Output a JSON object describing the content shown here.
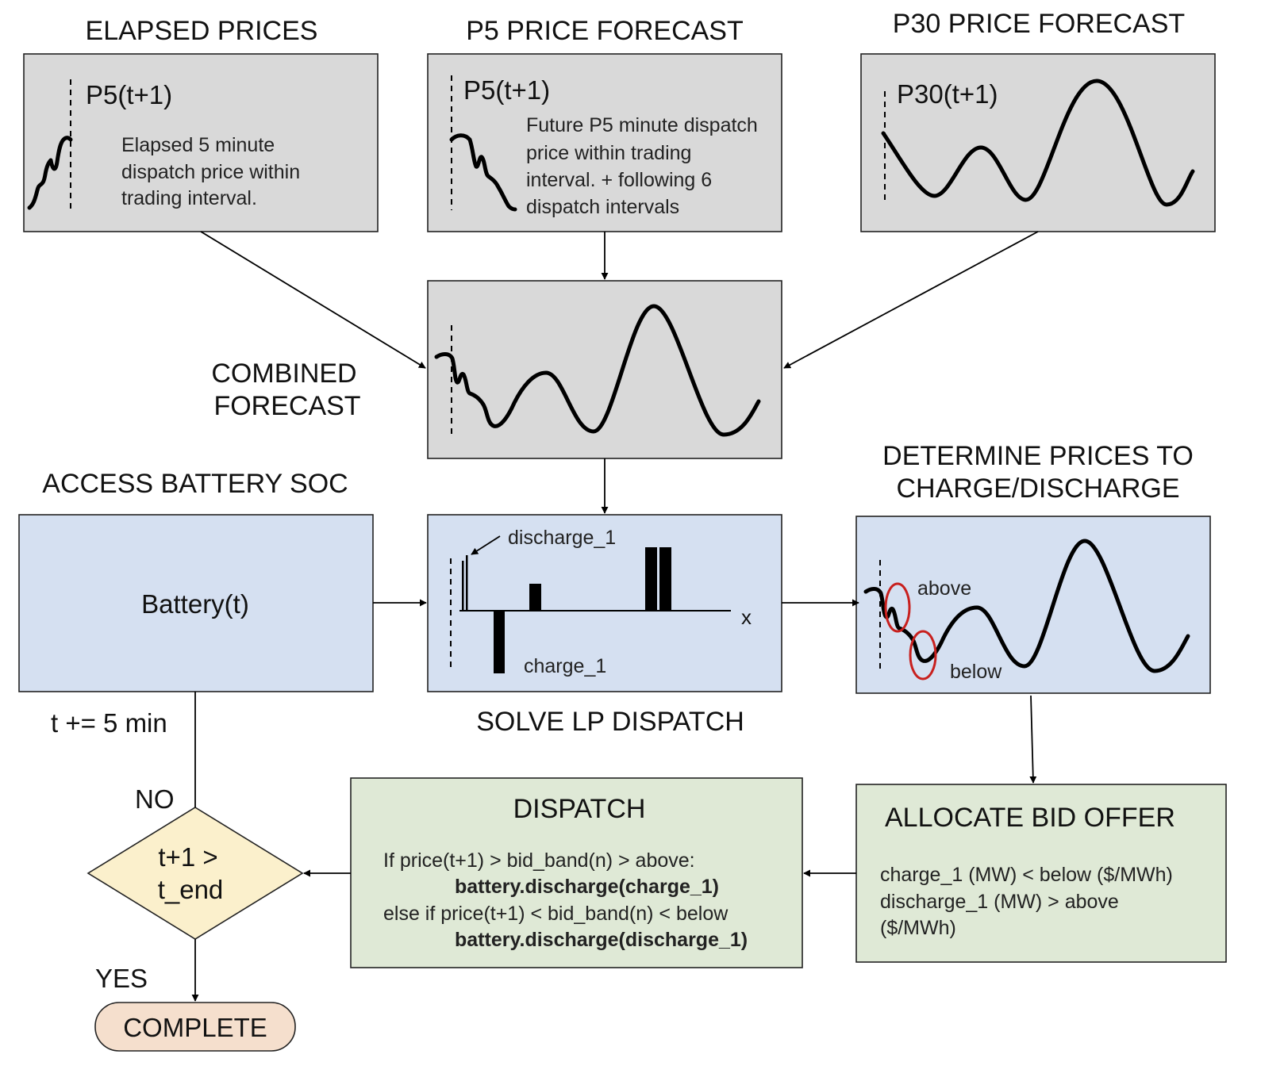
{
  "headings": {
    "elapsed": "ELAPSED PRICES",
    "p5": "P5 PRICE FORECAST",
    "p30": "P30 PRICE FORECAST",
    "combined_line1": "COMBINED",
    "combined_line2": "FORECAST",
    "battery_soc": "ACCESS BATTERY SOC",
    "determine_line1": "DETERMINE PRICES TO",
    "determine_line2": "CHARGE/DISCHARGE",
    "solve_lp": "SOLVE LP DISPATCH"
  },
  "elapsed_box": {
    "label": "P5(t+1)",
    "desc": [
      "Elapsed 5 minute",
      "dispatch price within",
      "trading interval."
    ]
  },
  "p5_box": {
    "label": "P5(t+1)",
    "desc": [
      "Future P5 minute dispatch",
      "price within trading",
      "interval. + following 6",
      "dispatch intervals"
    ]
  },
  "p30_box": {
    "label": "P30(t+1)"
  },
  "battery_box": {
    "label": "Battery(t)"
  },
  "lp_box": {
    "discharge_label": "discharge_1",
    "charge_label": "charge_1",
    "axis_label": "x"
  },
  "determine_box": {
    "above_label": "above",
    "below_label": "below"
  },
  "allocate_box": {
    "title": "ALLOCATE BID OFFER",
    "lines": [
      "charge_1 (MW) < below ($/MWh)",
      "discharge_1 (MW) > above",
      "($/MWh)"
    ]
  },
  "dispatch_box": {
    "title": "DISPATCH",
    "line1": "If price(t+1)  > bid_band(n) > above:",
    "line2": "battery.discharge(charge_1)",
    "line3": "else if  price(t+1) < bid_band(n) < below",
    "line4": "battery.discharge(discharge_1)"
  },
  "decision": {
    "line1": "t+1 >",
    "line2": "t_end"
  },
  "loop_label": "t += 5 min",
  "no_label": "NO",
  "yes_label": "YES",
  "complete_label": "COMPLETE",
  "colors": {
    "grey_box": "#d9d9d9",
    "blue_box": "#d5e0f1",
    "green_box": "#dfe9d6",
    "decision_fill": "#fbf0cc",
    "terminal_fill": "#f5dfcd",
    "highlight_circle": "#c8201e"
  }
}
